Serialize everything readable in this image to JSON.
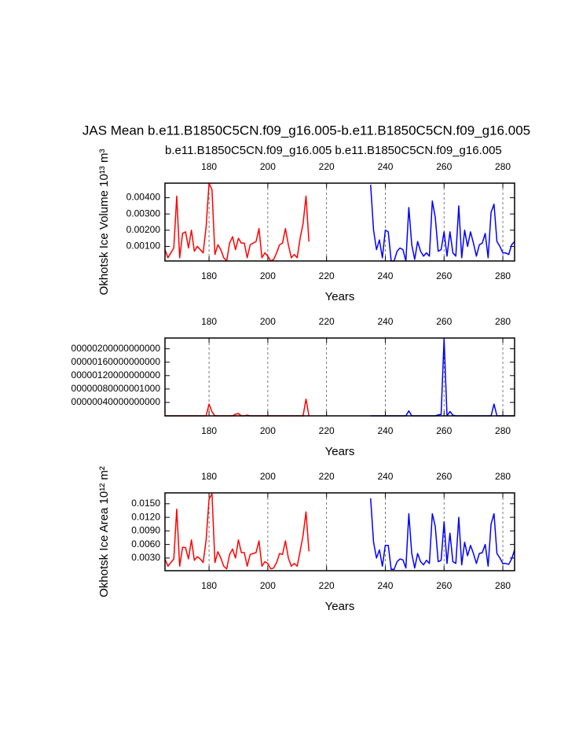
{
  "chart_data": [
    {
      "type": "line",
      "title": "JAS Mean b.e11.B1850C5CN.f09_g16.005-b.e11.B1850C5CN.f09_g16.005",
      "ylabel": "Okhotsk Ice Volume 10¹³ m³",
      "xlabel": "Years",
      "xlim": [
        165,
        284
      ],
      "xticks": [
        180,
        200,
        220,
        240,
        260,
        280
      ],
      "ylim": [
        0.0001,
        0.0049
      ],
      "yticks": [
        {
          "value": 0.001,
          "label": "0.00100"
        },
        {
          "value": 0.002,
          "label": "0.00200"
        },
        {
          "value": 0.003,
          "label": "0.00300"
        },
        {
          "value": 0.004,
          "label": "0.00400"
        }
      ],
      "grid": true,
      "series": [
        {
          "name": "b.e11.B1850C5CN.f09_g16.005",
          "color": "#ff0000",
          "x": [
            165,
            166,
            167,
            168,
            169,
            170,
            171,
            172,
            173,
            174,
            175,
            176,
            177,
            178,
            179,
            180,
            181,
            182,
            183,
            184,
            185,
            186,
            187,
            188,
            189,
            190,
            191,
            192,
            193,
            194,
            195,
            196,
            197,
            198,
            199,
            200,
            201,
            202,
            203,
            204,
            205,
            206,
            207,
            208,
            209,
            210,
            211,
            212,
            213,
            214
          ],
          "values": [
            0.0008,
            0.0003,
            0.0006,
            0.0009,
            0.0041,
            0.0003,
            0.0018,
            0.0019,
            0.0009,
            0.002,
            0.0007,
            0.001,
            0.0008,
            0.0006,
            0.0022,
            0.0049,
            0.0045,
            0.0005,
            0.0011,
            0.0008,
            0.0003,
            0.0001,
            0.0012,
            0.0016,
            0.0008,
            0.0015,
            0.0012,
            0.0012,
            0.0003,
            0.0011,
            0.0012,
            0.0013,
            0.0021,
            0.0003,
            0.0006,
            0.0004,
            0.0001,
            0.0002,
            0.0006,
            0.0011,
            0.0012,
            0.0021,
            0.0011,
            0.0003,
            0.0005,
            0.0003,
            0.0015,
            0.0024,
            0.0041,
            0.0013
          ]
        },
        {
          "name": "b.e11.B1850C5CN.f09_g16.005",
          "color": "#0000ff",
          "x": [
            235,
            236,
            237,
            238,
            239,
            240,
            241,
            242,
            243,
            244,
            245,
            246,
            247,
            248,
            249,
            250,
            251,
            252,
            253,
            254,
            255,
            256,
            257,
            258,
            259,
            260,
            261,
            262,
            263,
            264,
            265,
            266,
            267,
            268,
            269,
            270,
            271,
            272,
            273,
            274,
            275,
            276,
            277,
            278,
            279,
            280,
            281,
            282,
            283,
            284
          ],
          "values": [
            0.0048,
            0.002,
            0.0008,
            0.0014,
            0.0003,
            0.002,
            0.0019,
            0.0001,
            0.0001,
            0.0007,
            0.0009,
            0.0008,
            0.0001,
            0.0034,
            0.0011,
            0.0002,
            0.0013,
            0.0007,
            0.0004,
            0.0006,
            0.0004,
            0.0038,
            0.0028,
            0.0007,
            0.0008,
            0.0019,
            0.0004,
            0.0019,
            0.0006,
            0.0004,
            0.0035,
            0.0003,
            0.002,
            0.001,
            0.0019,
            0.0012,
            0.0004,
            0.0011,
            0.0012,
            0.0018,
            0.0003,
            0.0031,
            0.0036,
            0.0013,
            0.001,
            0.0006,
            0.0006,
            0.0005,
            0.0011,
            0.0013
          ]
        }
      ]
    },
    {
      "type": "line",
      "xlabel": "Years",
      "xlim": [
        165,
        284
      ],
      "xticks": [
        180,
        200,
        220,
        240,
        260,
        280
      ],
      "ylim": [
        0,
        232000000000
      ],
      "yticks": [
        {
          "value": 40000000000,
          "label": "00000040000000000"
        },
        {
          "value": 80000001000,
          "label": "00000080000001000"
        },
        {
          "value": 120000000000,
          "label": "00000120000000000"
        },
        {
          "value": 160000000000,
          "label": "00000160000000000"
        },
        {
          "value": 200000000000,
          "label": "00000200000000000"
        }
      ],
      "grid": true,
      "series": [
        {
          "color": "#ff0000",
          "x": [
            165,
            166,
            167,
            168,
            169,
            170,
            171,
            172,
            173,
            174,
            175,
            176,
            177,
            178,
            179,
            180,
            181,
            182,
            183,
            184,
            185,
            186,
            187,
            188,
            189,
            190,
            191,
            192,
            193,
            194,
            195,
            196,
            197,
            198,
            199,
            200,
            201,
            202,
            203,
            204,
            205,
            206,
            207,
            208,
            209,
            210,
            211,
            212,
            213,
            214
          ],
          "values": [
            0,
            0,
            0,
            0,
            0,
            0,
            0,
            0,
            0,
            0,
            0,
            0,
            0,
            0,
            0,
            35000000000,
            12000000000,
            0,
            0,
            0,
            0,
            0,
            0,
            0,
            5000000000,
            7000000000,
            0,
            0,
            2000000000,
            0,
            0,
            0,
            0,
            0,
            0,
            0,
            0,
            0,
            0,
            0,
            0,
            0,
            0,
            0,
            0,
            0,
            0,
            0,
            50000000000,
            0
          ]
        },
        {
          "color": "#0000ff",
          "x": [
            235,
            236,
            237,
            238,
            239,
            240,
            241,
            242,
            243,
            244,
            245,
            246,
            247,
            248,
            249,
            250,
            251,
            252,
            253,
            254,
            255,
            256,
            257,
            258,
            259,
            260,
            261,
            262,
            263,
            264,
            265,
            266,
            267,
            268,
            269,
            270,
            271,
            272,
            273,
            274,
            275,
            276,
            277,
            278,
            279,
            280,
            281,
            282,
            283,
            284
          ],
          "values": [
            0,
            0,
            0,
            0,
            0,
            0,
            0,
            0,
            0,
            0,
            0,
            0,
            0,
            15000000000,
            0,
            0,
            0,
            0,
            0,
            0,
            0,
            0,
            0,
            3000000000,
            4000000000,
            230000000000,
            0,
            13000000000,
            2000000000,
            0,
            0,
            0,
            0,
            0,
            0,
            0,
            0,
            0,
            0,
            0,
            0,
            0,
            35000000000,
            0,
            0,
            0,
            0,
            0,
            0,
            0
          ]
        }
      ]
    },
    {
      "type": "line",
      "ylabel": "Okhotsk Ice Area 10¹² m²",
      "xlabel": "Years",
      "xlim": [
        165,
        284
      ],
      "xticks": [
        180,
        200,
        220,
        240,
        260,
        280
      ],
      "ylim": [
        0.0002,
        0.0174
      ],
      "yticks": [
        {
          "value": 0.003,
          "label": "0.0030"
        },
        {
          "value": 0.006,
          "label": "0.0060"
        },
        {
          "value": 0.009,
          "label": "0.0090"
        },
        {
          "value": 0.012,
          "label": "0.0120"
        },
        {
          "value": 0.015,
          "label": "0.0150"
        }
      ],
      "grid": true,
      "series": [
        {
          "color": "#ff0000",
          "x": [
            165,
            166,
            167,
            168,
            169,
            170,
            171,
            172,
            173,
            174,
            175,
            176,
            177,
            178,
            179,
            180,
            181,
            182,
            183,
            184,
            185,
            186,
            187,
            188,
            189,
            190,
            191,
            192,
            193,
            194,
            195,
            196,
            197,
            198,
            199,
            200,
            201,
            202,
            203,
            204,
            205,
            206,
            207,
            208,
            209,
            210,
            211,
            212,
            213,
            214
          ],
          "values": [
            0.0028,
            0.0012,
            0.002,
            0.0028,
            0.0138,
            0.0012,
            0.0054,
            0.0053,
            0.0028,
            0.007,
            0.0025,
            0.0033,
            0.0028,
            0.002,
            0.007,
            0.016,
            0.0172,
            0.002,
            0.0044,
            0.003,
            0.0012,
            0.0006,
            0.0038,
            0.005,
            0.003,
            0.007,
            0.0042,
            0.0042,
            0.0012,
            0.0038,
            0.004,
            0.0042,
            0.0068,
            0.0012,
            0.0022,
            0.0018,
            0.0006,
            0.0008,
            0.002,
            0.004,
            0.0038,
            0.0068,
            0.003,
            0.0012,
            0.0018,
            0.0012,
            0.0045,
            0.008,
            0.0132,
            0.0045
          ]
        },
        {
          "color": "#0000ff",
          "x": [
            235,
            236,
            237,
            238,
            239,
            240,
            241,
            242,
            243,
            244,
            245,
            246,
            247,
            248,
            249,
            250,
            251,
            252,
            253,
            254,
            255,
            256,
            257,
            258,
            259,
            260,
            261,
            262,
            263,
            264,
            265,
            266,
            267,
            268,
            269,
            270,
            271,
            272,
            273,
            274,
            275,
            276,
            277,
            278,
            279,
            280,
            281,
            282,
            283,
            284
          ],
          "values": [
            0.0162,
            0.0065,
            0.003,
            0.0048,
            0.0012,
            0.0058,
            0.0058,
            0.0005,
            0.0005,
            0.0022,
            0.0028,
            0.0026,
            0.0008,
            0.0128,
            0.004,
            0.0008,
            0.004,
            0.0022,
            0.0015,
            0.0025,
            0.0018,
            0.0128,
            0.01,
            0.0022,
            0.0025,
            0.011,
            0.0018,
            0.0085,
            0.0022,
            0.0018,
            0.012,
            0.0015,
            0.0065,
            0.0035,
            0.0058,
            0.004,
            0.0018,
            0.004,
            0.0042,
            0.006,
            0.0012,
            0.0105,
            0.0128,
            0.004,
            0.003,
            0.0018,
            0.0018,
            0.0016,
            0.0028,
            0.0048
          ]
        }
      ]
    }
  ]
}
